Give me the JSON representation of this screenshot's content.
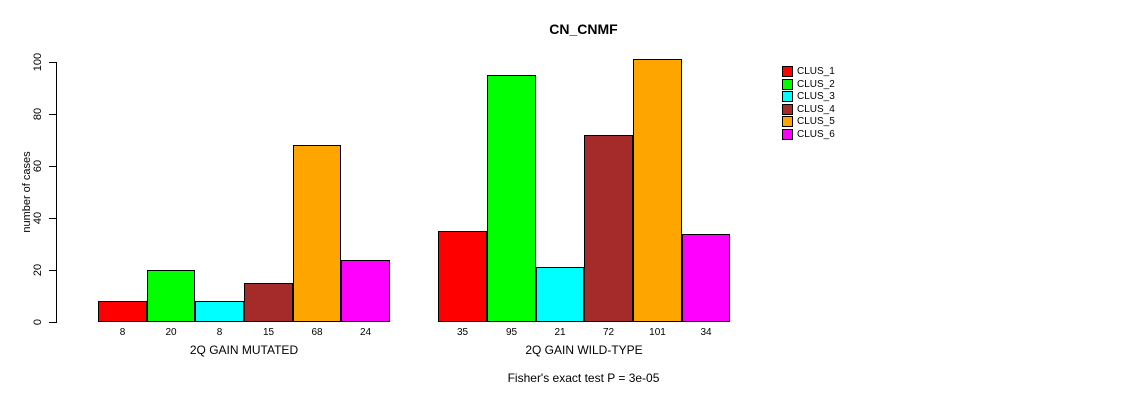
{
  "title": "CN_CNMF",
  "ylabel": "number of cases",
  "annotation": "Fisher's exact test P = 3e-05",
  "chart_data": {
    "type": "bar",
    "title": "CN_CNMF",
    "xlabel": "",
    "ylabel": "number of cases",
    "ylim": [
      0,
      100
    ],
    "yticks": [
      "0",
      "20",
      "40",
      "60",
      "80",
      "100"
    ],
    "grid": false,
    "legend_position": "right-outside",
    "bar_value_labels": true,
    "categories": [
      "2Q GAIN MUTATED",
      "2Q GAIN WILD-TYPE"
    ],
    "series": [
      {
        "name": "CLUS_1",
        "color": "#FF0000",
        "values": [
          8,
          35
        ]
      },
      {
        "name": "CLUS_2",
        "color": "#00FF00",
        "values": [
          20,
          95
        ]
      },
      {
        "name": "CLUS_3",
        "color": "#00FFFF",
        "values": [
          8,
          21
        ]
      },
      {
        "name": "CLUS_4",
        "color": "#A52A2A",
        "values": [
          15,
          72
        ]
      },
      {
        "name": "CLUS_5",
        "color": "#FFA500",
        "values": [
          68,
          101
        ]
      },
      {
        "name": "CLUS_6",
        "color": "#FF00FF",
        "values": [
          24,
          34
        ]
      }
    ],
    "annotation": "Fisher's exact test P = 3e-05"
  }
}
